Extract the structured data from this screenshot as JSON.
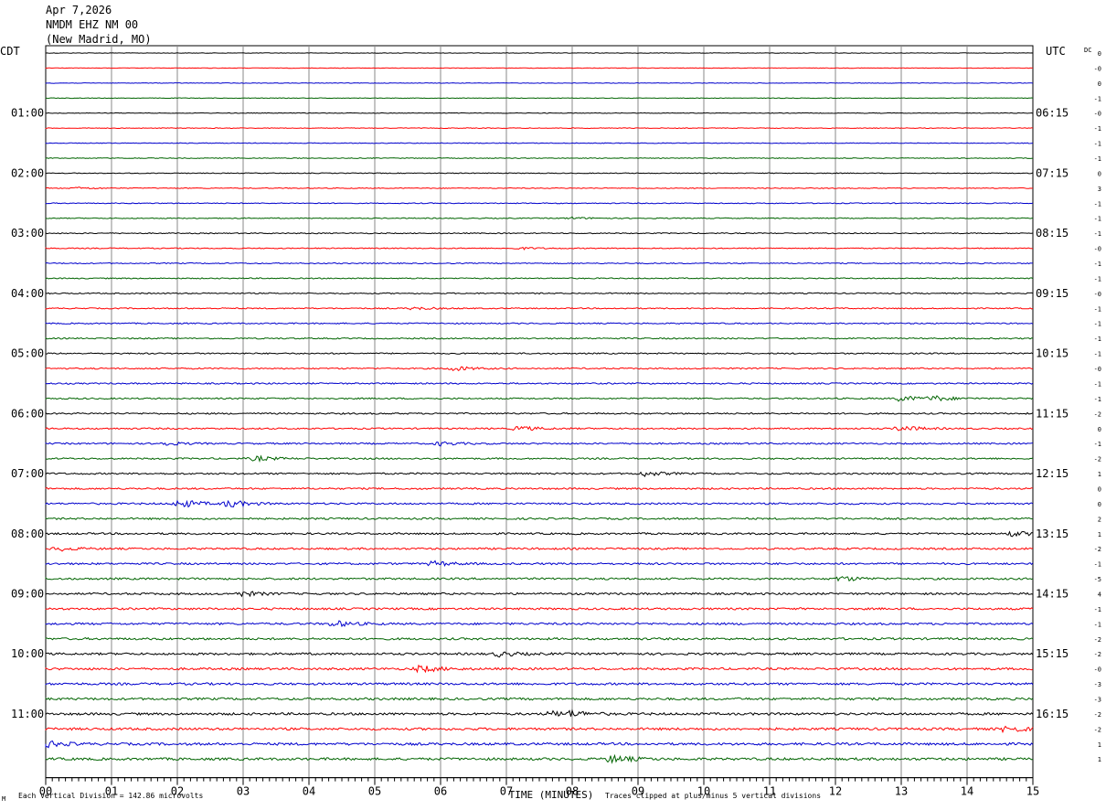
{
  "header": {
    "date": "Apr 7,2026",
    "station": "NMDM EHZ NM 00",
    "location": "(New Madrid, MO)"
  },
  "left_tz": "CDT",
  "right_tz": "UTC",
  "dc_label": "DC",
  "footer": {
    "division": "Each Vertical Division =  142.86 microvolts",
    "clip": "Traces clipped at plus/minus 5 vertical divisions",
    "corner": "M"
  },
  "chart_data": {
    "type": "line",
    "title": "",
    "xlabel": "TIME (MINUTES)",
    "x_ticks": [
      "00",
      "01",
      "02",
      "03",
      "04",
      "05",
      "06",
      "07",
      "08",
      "09",
      "10",
      "11",
      "12",
      "13",
      "14",
      "15"
    ],
    "xlim": [
      0,
      15
    ],
    "n_traces": 48,
    "trace_minutes": 15,
    "trace_colors": [
      "#000000",
      "#ff0000",
      "#0000cc",
      "#006400"
    ],
    "left_hour_labels": [
      "01:00",
      "02:00",
      "03:00",
      "04:00",
      "05:00",
      "06:00",
      "07:00",
      "08:00",
      "09:00",
      "10:00",
      "11:00"
    ],
    "right_hour_labels": [
      "06:15",
      "07:15",
      "08:15",
      "09:15",
      "10:15",
      "11:15",
      "12:15",
      "13:15",
      "14:15",
      "15:15",
      "16:15"
    ],
    "dc_offsets": [
      "0",
      "-0",
      "0",
      "-1",
      "-0",
      "-1",
      "-1",
      "-1",
      "0",
      "3",
      "-1",
      "-1",
      "-1",
      "-0",
      "-1",
      "-1",
      "-0",
      "-1",
      "-1",
      "-1",
      "-1",
      "-0",
      "-1",
      "-1",
      "-2",
      "0",
      "-1",
      "-2",
      "1",
      "0",
      "0",
      "2",
      "1",
      "-2",
      "-1",
      "-5",
      "4",
      "-1",
      "-1",
      "-2",
      "-2",
      "-0",
      "-3",
      "-3",
      "-2",
      "-2",
      "1",
      "1"
    ],
    "noise_levels": [
      1,
      1,
      1,
      1,
      1,
      1,
      1,
      1,
      1,
      1,
      1,
      1,
      1,
      1,
      1,
      1,
      1,
      1,
      1,
      1,
      1,
      1,
      1,
      1,
      1,
      1,
      1,
      1,
      1,
      1,
      1,
      1,
      1,
      1,
      1,
      1,
      1,
      1,
      1,
      1,
      1,
      1,
      1,
      1,
      1,
      1,
      1,
      1
    ],
    "events": [
      {
        "trace": 9,
        "minute": 0.5,
        "amplitude": 2
      },
      {
        "trace": 11,
        "minute": 8.0,
        "amplitude": 2
      },
      {
        "trace": 13,
        "minute": 7.2,
        "amplitude": 2
      },
      {
        "trace": 17,
        "minute": 5.6,
        "amplitude": 3
      },
      {
        "trace": 21,
        "minute": 6.2,
        "amplitude": 5
      },
      {
        "trace": 23,
        "minute": 13.0,
        "amplitude": 6
      },
      {
        "trace": 23,
        "minute": 13.5,
        "amplitude": 5
      },
      {
        "trace": 25,
        "minute": 7.2,
        "amplitude": 5
      },
      {
        "trace": 25,
        "minute": 13.0,
        "amplitude": 6
      },
      {
        "trace": 26,
        "minute": 1.8,
        "amplitude": 4
      },
      {
        "trace": 26,
        "minute": 6.0,
        "amplitude": 4
      },
      {
        "trace": 27,
        "minute": 3.2,
        "amplitude": 5
      },
      {
        "trace": 28,
        "minute": 9.1,
        "amplitude": 5
      },
      {
        "trace": 30,
        "minute": 2.05,
        "amplitude": 9
      },
      {
        "trace": 30,
        "minute": 2.8,
        "amplitude": 8
      },
      {
        "trace": 32,
        "minute": 14.7,
        "amplitude": 5
      },
      {
        "trace": 33,
        "minute": 0.2,
        "amplitude": 4
      },
      {
        "trace": 34,
        "minute": 5.9,
        "amplitude": 5
      },
      {
        "trace": 35,
        "minute": 12.1,
        "amplitude": 5
      },
      {
        "trace": 36,
        "minute": 3.0,
        "amplitude": 5
      },
      {
        "trace": 38,
        "minute": 4.4,
        "amplitude": 6
      },
      {
        "trace": 40,
        "minute": 6.9,
        "amplitude": 5
      },
      {
        "trace": 41,
        "minute": 5.7,
        "amplitude": 7
      },
      {
        "trace": 44,
        "minute": 7.7,
        "amplitude": 5
      },
      {
        "trace": 44,
        "minute": 8.0,
        "amplitude": 5
      },
      {
        "trace": 45,
        "minute": 14.6,
        "amplitude": 7
      },
      {
        "trace": 46,
        "minute": 0.05,
        "amplitude": 6
      },
      {
        "trace": 47,
        "minute": 8.6,
        "amplitude": 8
      }
    ]
  }
}
